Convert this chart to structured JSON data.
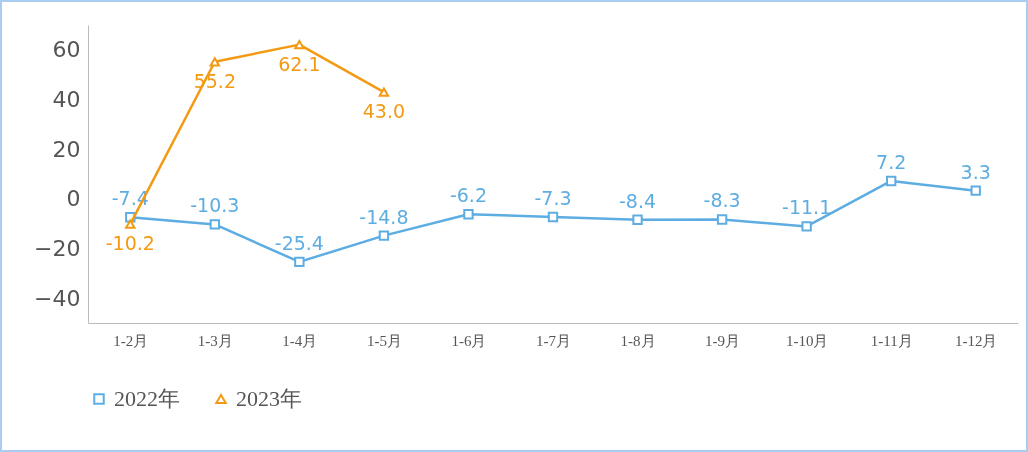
{
  "chart_data": {
    "type": "line",
    "categories": [
      "1-2月",
      "1-3月",
      "1-4月",
      "1-5月",
      "1-6月",
      "1-7月",
      "1-8月",
      "1-9月",
      "1-10月",
      "1-11月",
      "1-12月"
    ],
    "series": [
      {
        "name": "2022年",
        "color": "#5dade2",
        "marker": "square",
        "values": [
          -7.4,
          -10.3,
          -25.4,
          -14.8,
          -6.2,
          -7.3,
          -8.4,
          -8.3,
          -11.1,
          7.2,
          3.3
        ],
        "value_labels": [
          "-7.4",
          "-10.3",
          "-25.4",
          "-14.8",
          "-6.2",
          "-7.3",
          "-8.4",
          "-8.3",
          "-11.1",
          "7.2",
          "3.3"
        ]
      },
      {
        "name": "2023年",
        "color": "#f39a12",
        "marker": "triangle",
        "values": [
          -10.2,
          55.2,
          62.1,
          43.0,
          null,
          null,
          null,
          null,
          null,
          null,
          null
        ],
        "value_labels": [
          "-10.2",
          "55.2",
          "62.1",
          "43.0",
          null,
          null,
          null,
          null,
          null,
          null,
          null
        ]
      }
    ],
    "ylim": [
      -50,
      70
    ],
    "yticks": [
      -40,
      -20,
      0,
      20,
      40,
      60
    ],
    "grid": false,
    "legend": "bottom"
  }
}
